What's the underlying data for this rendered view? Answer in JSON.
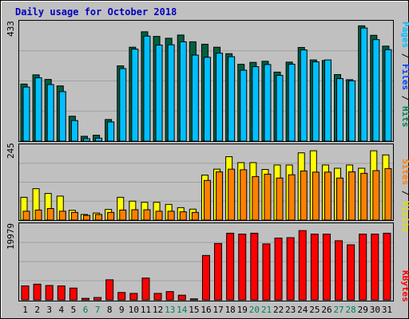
{
  "chart_data": [
    {
      "type": "bar",
      "title": "Daily usage for October 2018",
      "panel": "top",
      "ylim": [
        0,
        433
      ],
      "tick_label": "433",
      "legend_position": "right-vertical",
      "categories": [
        "1",
        "2",
        "3",
        "4",
        "5",
        "6",
        "7",
        "8",
        "9",
        "10",
        "11",
        "12",
        "13",
        "14",
        "15",
        "16",
        "17",
        "18",
        "19",
        "20",
        "21",
        "22",
        "23",
        "24",
        "25",
        "26",
        "27",
        "28",
        "29",
        "30",
        "31"
      ],
      "series": [
        {
          "name": "Hits",
          "color": "#006040",
          "values": [
            211,
            245,
            228,
            204,
            92,
            18,
            22,
            80,
            278,
            347,
            404,
            387,
            380,
            392,
            367,
            358,
            347,
            323,
            284,
            291,
            295,
            255,
            292,
            346,
            300,
            298,
            246,
            227,
            426,
            391,
            351
          ]
        },
        {
          "name": "Files",
          "color": "#00c0ff",
          "values": [
            200,
            234,
            209,
            183,
            76,
            9,
            11,
            71,
            268,
            340,
            388,
            355,
            356,
            367,
            318,
            310,
            325,
            312,
            262,
            275,
            283,
            243,
            284,
            337,
            293,
            300,
            231,
            223,
            418,
            375,
            338
          ]
        },
        {
          "name": "Pages",
          "color": "#00c0ff",
          "values": [
            0,
            0,
            0,
            0,
            0,
            0,
            0,
            0,
            0,
            0,
            0,
            0,
            0,
            0,
            0,
            0,
            0,
            0,
            0,
            0,
            0,
            0,
            0,
            0,
            0,
            0,
            0,
            0,
            0,
            0,
            0
          ]
        }
      ]
    },
    {
      "type": "bar",
      "panel": "middle",
      "ylim": [
        0,
        245
      ],
      "tick_label": "245",
      "legend_position": "right-vertical",
      "categories": [
        "1",
        "2",
        "3",
        "4",
        "5",
        "6",
        "7",
        "8",
        "9",
        "10",
        "11",
        "12",
        "13",
        "14",
        "15",
        "16",
        "17",
        "18",
        "19",
        "20",
        "21",
        "22",
        "23",
        "24",
        "25",
        "26",
        "27",
        "28",
        "29",
        "30",
        "31"
      ],
      "series": [
        {
          "name": "Visits",
          "color": "#ffff00",
          "values": [
            77,
            106,
            90,
            81,
            33,
            19,
            24,
            36,
            77,
            64,
            60,
            60,
            53,
            42,
            37,
            152,
            172,
            214,
            194,
            194,
            171,
            186,
            186,
            227,
            234,
            186,
            175,
            186,
            175,
            234,
            220
          ]
        },
        {
          "name": "Sites",
          "color": "#ff8000",
          "values": [
            30,
            34,
            39,
            30,
            26,
            16,
            19,
            26,
            34,
            35,
            35,
            30,
            30,
            28,
            26,
            134,
            163,
            172,
            170,
            147,
            155,
            142,
            153,
            166,
            162,
            162,
            142,
            163,
            158,
            167,
            174
          ]
        }
      ]
    },
    {
      "type": "bar",
      "panel": "bottom",
      "ylim": [
        0,
        19979
      ],
      "tick_label": "19979",
      "legend_position": "right-vertical",
      "categories": [
        "1",
        "2",
        "3",
        "4",
        "5",
        "6",
        "7",
        "8",
        "9",
        "10",
        "11",
        "12",
        "13",
        "14",
        "15",
        "16",
        "17",
        "18",
        "19",
        "20",
        "21",
        "22",
        "23",
        "24",
        "25",
        "26",
        "27",
        "28",
        "29",
        "30",
        "31"
      ],
      "series": [
        {
          "name": "KBytes",
          "color": "#ff0000",
          "values": [
            3795,
            4276,
            3911,
            3795,
            3210,
            406,
            645,
            5462,
            2012,
            1758,
            5937,
            1758,
            2253,
            1271,
            276,
            12092,
            15349,
            18148,
            17902,
            18148,
            15234,
            16821,
            16937,
            18859,
            17902,
            17902,
            16096,
            14994,
            17902,
            17902,
            18148
          ]
        }
      ]
    }
  ],
  "x_labels": {
    "days": [
      "1",
      "2",
      "3",
      "4",
      "5",
      "6",
      "7",
      "8",
      "9",
      "10",
      "11",
      "12",
      "13",
      "14",
      "15",
      "16",
      "17",
      "18",
      "19",
      "20",
      "21",
      "22",
      "23",
      "24",
      "25",
      "26",
      "27",
      "28",
      "29",
      "30",
      "31"
    ],
    "weekend_days": [
      "6",
      "7",
      "13",
      "14",
      "20",
      "21",
      "27",
      "28"
    ],
    "weekday_color": "#000000",
    "weekend_color": "#00805c"
  },
  "legend": {
    "top": [
      {
        "text": "Pages",
        "color": "#00c0ff"
      },
      {
        "text": " / ",
        "color": "#000000"
      },
      {
        "text": "Files",
        "color": "#0040ff"
      },
      {
        "text": " / ",
        "color": "#000000"
      },
      {
        "text": "Hits",
        "color": "#00805c"
      }
    ],
    "middle": [
      {
        "text": "Sites",
        "color": "#ff8000"
      },
      {
        "text": " / ",
        "color": "#000000"
      },
      {
        "text": "Visits",
        "color": "#e0e000"
      }
    ],
    "bottom": [
      {
        "text": "KBytes",
        "color": "#ff0000"
      }
    ]
  },
  "colors": {
    "background": "#c0c0c0",
    "title": "#0000c0",
    "plot_bg": "#c0c0c0",
    "grid": "#a0a0a0"
  }
}
